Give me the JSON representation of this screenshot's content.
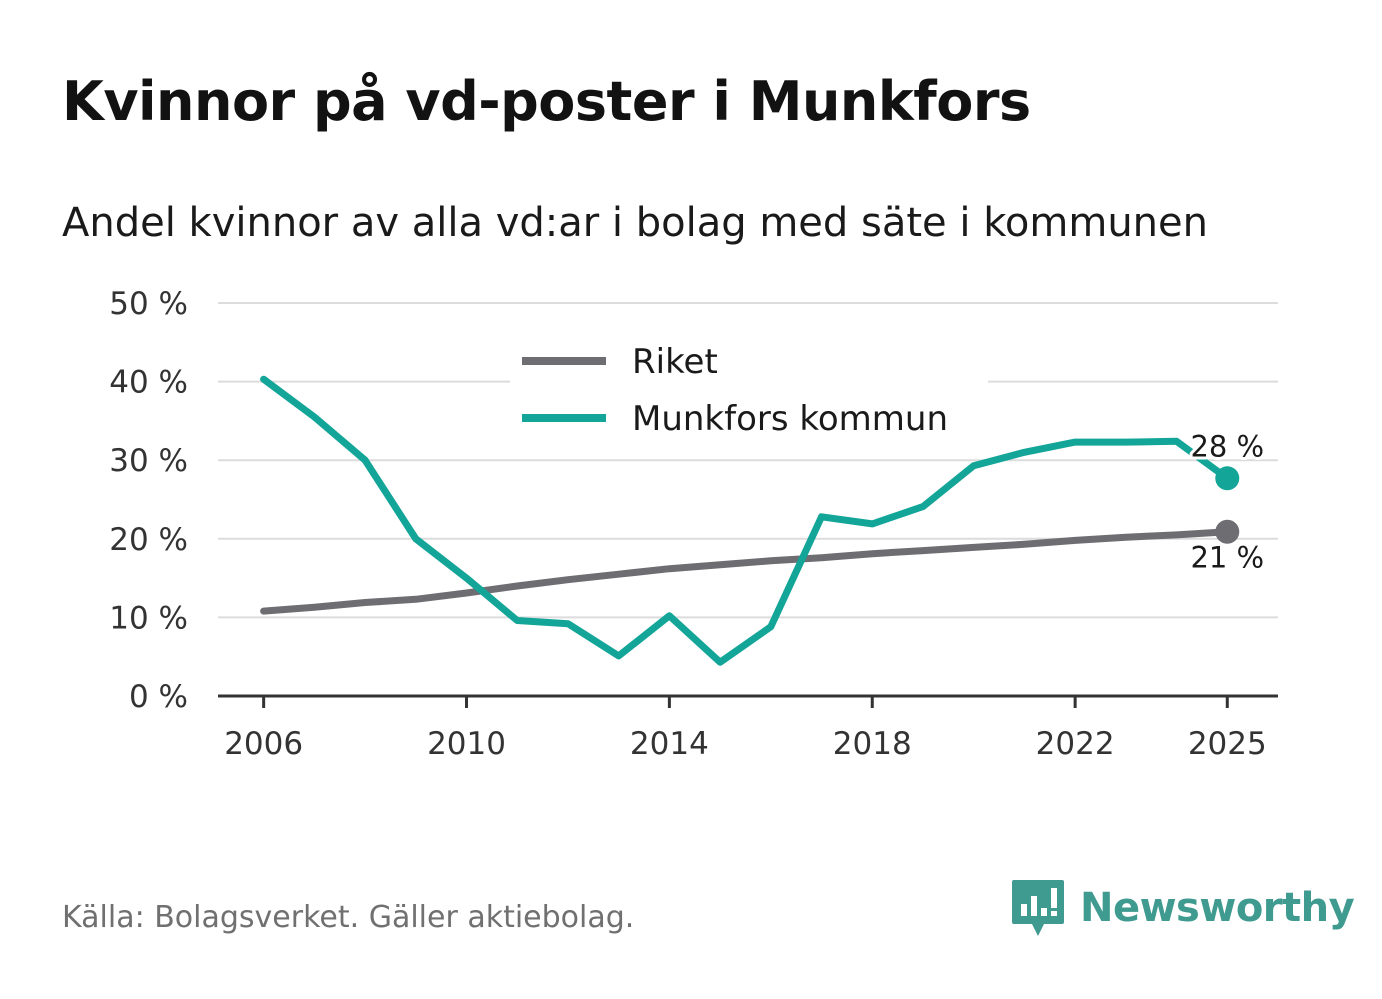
{
  "header": {
    "title": "Kvinnor på vd-poster i Munkfors",
    "subtitle": "Andel kvinnor av alla vd:ar i bolag med säte i kommunen"
  },
  "footer": {
    "source": "Källa: Bolagsverket. Gäller aktiebolag.",
    "brand": "Newsworthy"
  },
  "colors": {
    "riket": "#6e6d72",
    "munkfors": "#12a598",
    "grid": "#dcdcdc",
    "axis": "#333333",
    "brand": "#3f9a8f"
  },
  "chart_data": {
    "type": "line",
    "title": "Kvinnor på vd-poster i Munkfors",
    "subtitle": "Andel kvinnor av alla vd:ar i bolag med säte i kommunen",
    "xlabel": "",
    "ylabel": "",
    "xlim": [
      2005.1,
      2026
    ],
    "ylim": [
      0,
      50
    ],
    "grid": true,
    "legend_position": "top-center",
    "x_ticks": [
      2006,
      2010,
      2014,
      2018,
      2022,
      2025
    ],
    "x_tick_labels": [
      "2006",
      "2010",
      "2014",
      "2018",
      "2022",
      "2025"
    ],
    "y_ticks": [
      0,
      10,
      20,
      30,
      40,
      50
    ],
    "y_tick_labels": [
      "0 %",
      "10 %",
      "20 %",
      "30 %",
      "40 %",
      "50 %"
    ],
    "series": [
      {
        "name": "Riket",
        "color": "#6e6d72",
        "x": [
          2006,
          2007,
          2008,
          2009,
          2010,
          2011,
          2012,
          2013,
          2014,
          2015,
          2016,
          2017,
          2018,
          2019,
          2020,
          2021,
          2022,
          2023,
          2024,
          2025
        ],
        "values": [
          10.8,
          11.3,
          11.9,
          12.3,
          13.1,
          14.0,
          14.8,
          15.5,
          16.2,
          16.7,
          17.2,
          17.6,
          18.1,
          18.5,
          18.9,
          19.3,
          19.8,
          20.2,
          20.5,
          20.9
        ],
        "end_label": "21 %"
      },
      {
        "name": "Munkfors kommun",
        "color": "#12a598",
        "x": [
          2006,
          2007,
          2008,
          2009,
          2010,
          2011,
          2012,
          2013,
          2014,
          2015,
          2016,
          2017,
          2018,
          2019,
          2020,
          2021,
          2022,
          2023,
          2024,
          2025
        ],
        "values": [
          40.3,
          35.5,
          30.0,
          20.0,
          15.0,
          9.6,
          9.2,
          5.1,
          10.2,
          4.3,
          8.8,
          22.8,
          21.9,
          24.1,
          29.3,
          31.0,
          32.3,
          32.3,
          32.4,
          27.7
        ],
        "end_label": "28 %"
      }
    ]
  }
}
